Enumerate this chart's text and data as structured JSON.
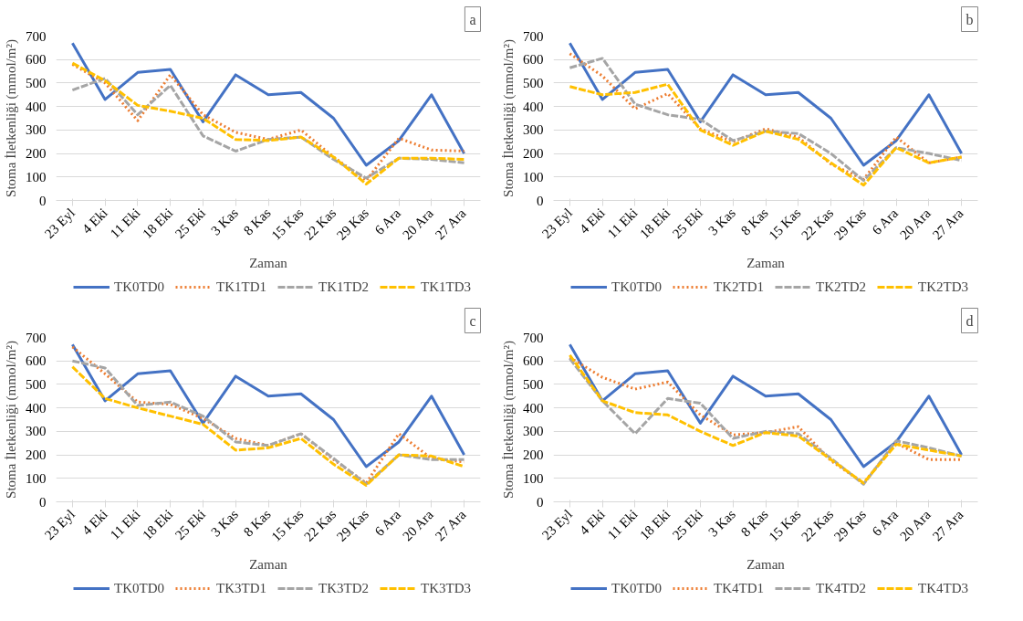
{
  "chart_data": [
    {
      "type": "line",
      "xlabel": "Zaman",
      "ylabel": "Stoma İletkenliği (mmol/m²)",
      "annotations": [
        "a"
      ],
      "categories": [
        "23 Eyl",
        "4 Eki",
        "11 Eki",
        "18 Eki",
        "25 Eki",
        "3 Kas",
        "8 Kas",
        "15 Kas",
        "22 Kas",
        "29 Kas",
        "6 Ara",
        "20 Ara",
        "27 Ara"
      ],
      "ylim": [
        0,
        700
      ],
      "yticks": [
        0,
        100,
        200,
        300,
        400,
        500,
        600,
        700
      ],
      "grid": "y",
      "legend": "bottom",
      "marker": "none",
      "series": [
        {
          "name": "TK0TD0",
          "color": "#4472c4",
          "line_style": "solid",
          "values": [
            670,
            430,
            545,
            558,
            335,
            535,
            450,
            460,
            350,
            150,
            255,
            450,
            200
          ]
        },
        {
          "name": "TK1TD1",
          "color": "#ed7d31",
          "line_style": "dotted",
          "values": [
            580,
            500,
            340,
            535,
            365,
            290,
            260,
            300,
            185,
            85,
            265,
            215,
            210
          ]
        },
        {
          "name": "TK1TD2",
          "color": "#a5a5a5",
          "line_style": "dashed",
          "values": [
            470,
            520,
            365,
            490,
            275,
            210,
            260,
            270,
            175,
            95,
            180,
            175,
            160
          ]
        },
        {
          "name": "TK1TD3",
          "color": "#ffc000",
          "line_style": "dashed",
          "values": [
            585,
            510,
            405,
            380,
            350,
            260,
            255,
            270,
            185,
            70,
            180,
            180,
            175
          ]
        }
      ]
    },
    {
      "type": "line",
      "xlabel": "Zaman",
      "ylabel": "Stoma İletkenliği (mmol/m²)",
      "annotations": [
        "b"
      ],
      "categories": [
        "23 Eyl",
        "4 Eki",
        "11 Eki",
        "18 Eki",
        "25 Eki",
        "3 Kas",
        "8 Kas",
        "15 Kas",
        "22 Kas",
        "29 Kas",
        "6 Ara",
        "20 Ara",
        "27 Ara"
      ],
      "ylim": [
        0,
        700
      ],
      "yticks": [
        0,
        100,
        200,
        300,
        400,
        500,
        600,
        700
      ],
      "grid": "y",
      "legend": "bottom",
      "marker": "none",
      "series": [
        {
          "name": "TK0TD0",
          "color": "#4472c4",
          "line_style": "solid",
          "values": [
            670,
            430,
            545,
            558,
            335,
            535,
            450,
            460,
            350,
            150,
            255,
            450,
            200
          ]
        },
        {
          "name": "TK2TD1",
          "color": "#ed7d31",
          "line_style": "dotted",
          "values": [
            625,
            530,
            390,
            455,
            305,
            250,
            305,
            270,
            155,
            90,
            270,
            160,
            185
          ]
        },
        {
          "name": "TK2TD2",
          "color": "#a5a5a5",
          "line_style": "dashed",
          "values": [
            565,
            605,
            410,
            365,
            345,
            255,
            295,
            285,
            200,
            85,
            225,
            200,
            170
          ]
        },
        {
          "name": "TK2TD3",
          "color": "#ffc000",
          "line_style": "dashed",
          "values": [
            485,
            450,
            460,
            495,
            300,
            235,
            295,
            260,
            160,
            65,
            225,
            160,
            185
          ]
        }
      ]
    },
    {
      "type": "line",
      "xlabel": "Zaman",
      "ylabel": "Stoma İletkenliği (mmol/m²)",
      "annotations": [
        "c"
      ],
      "categories": [
        "23 Eyl",
        "4 Eki",
        "11 Eki",
        "18 Eki",
        "25 Eki",
        "3 Kas",
        "8 Kas",
        "15 Kas",
        "22 Kas",
        "29 Kas",
        "6 Ara",
        "20 Ara",
        "27 Ara"
      ],
      "ylim": [
        0,
        700
      ],
      "yticks": [
        0,
        100,
        200,
        300,
        400,
        500,
        600,
        700
      ],
      "grid": "y",
      "legend": "bottom",
      "marker": "none",
      "series": [
        {
          "name": "TK0TD0",
          "color": "#4472c4",
          "line_style": "solid",
          "values": [
            670,
            430,
            545,
            558,
            335,
            535,
            450,
            460,
            350,
            150,
            255,
            450,
            200
          ]
        },
        {
          "name": "TK3TD1",
          "color": "#ed7d31",
          "line_style": "dotted",
          "values": [
            660,
            545,
            425,
            415,
            355,
            270,
            240,
            290,
            180,
            80,
            290,
            185,
            170
          ]
        },
        {
          "name": "TK3TD2",
          "color": "#a5a5a5",
          "line_style": "dashed",
          "values": [
            600,
            570,
            410,
            425,
            365,
            255,
            240,
            290,
            185,
            75,
            200,
            180,
            180
          ]
        },
        {
          "name": "TK3TD3",
          "color": "#ffc000",
          "line_style": "dashed",
          "values": [
            575,
            440,
            400,
            365,
            330,
            220,
            230,
            270,
            160,
            70,
            200,
            195,
            150
          ]
        }
      ]
    },
    {
      "type": "line",
      "xlabel": "Zaman",
      "ylabel": "Stoma İletkenliği (mmol/m²)",
      "annotations": [
        "d"
      ],
      "categories": [
        "23 Eyl",
        "4 Eki",
        "11 Eki",
        "18 Eki",
        "25 Eki",
        "3 Kas",
        "8 Kas",
        "15 Kas",
        "22 Kas",
        "29 Kas",
        "6 Ara",
        "20 Ara",
        "27 Ara"
      ],
      "ylim": [
        0,
        700
      ],
      "yticks": [
        0,
        100,
        200,
        300,
        400,
        500,
        600,
        700
      ],
      "grid": "y",
      "legend": "bottom",
      "marker": "none",
      "series": [
        {
          "name": "TK0TD0",
          "color": "#4472c4",
          "line_style": "solid",
          "values": [
            670,
            430,
            545,
            558,
            335,
            535,
            450,
            460,
            350,
            150,
            255,
            450,
            200
          ]
        },
        {
          "name": "TK4TD1",
          "color": "#ed7d31",
          "line_style": "dotted",
          "values": [
            615,
            530,
            480,
            510,
            370,
            285,
            295,
            320,
            175,
            80,
            250,
            180,
            180
          ]
        },
        {
          "name": "TK4TD2",
          "color": "#a5a5a5",
          "line_style": "dashed",
          "values": [
            610,
            430,
            290,
            440,
            420,
            270,
            300,
            290,
            185,
            75,
            260,
            230,
            195
          ]
        },
        {
          "name": "TK4TD3",
          "color": "#ffc000",
          "line_style": "dashed",
          "values": [
            625,
            430,
            380,
            370,
            300,
            240,
            295,
            280,
            180,
            80,
            245,
            220,
            195
          ]
        }
      ]
    }
  ]
}
